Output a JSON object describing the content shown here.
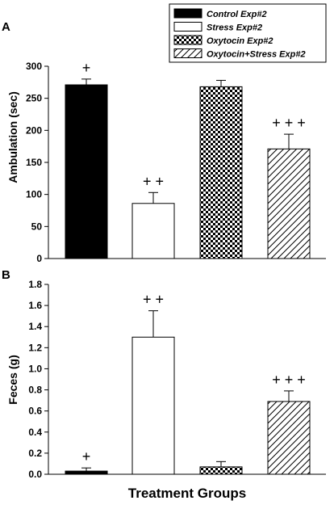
{
  "legend": {
    "placement": "top-right",
    "entries": [
      {
        "label": "Control Exp#2",
        "pattern": "solid-black"
      },
      {
        "label": "Stress Exp#2",
        "pattern": "open-white"
      },
      {
        "label": "Oxytocin Exp#2",
        "pattern": "checkerboard"
      },
      {
        "label": "Oxytocin+Stress Exp#2",
        "pattern": "diagonal-hatch"
      }
    ]
  },
  "xlabel": "Treatment Groups",
  "chart_data": [
    {
      "type": "bar",
      "panel_label": "A",
      "ylabel": "Ambulation (sec)",
      "ylim": [
        0,
        300
      ],
      "yticks": [
        "0",
        "50",
        "100",
        "150",
        "200",
        "250",
        "300"
      ],
      "categories": [
        "Control Exp#2",
        "Stress Exp#2",
        "Oxytocin Exp#2",
        "Oxytocin+Stress Exp#2"
      ],
      "values": [
        271,
        86,
        268,
        171
      ],
      "errors": [
        9,
        17,
        10,
        23
      ],
      "annotations": [
        "+",
        "+ +",
        "",
        "+ + +"
      ],
      "grid": false
    },
    {
      "type": "bar",
      "panel_label": "B",
      "ylabel": "Feces (g)",
      "ylim": [
        0,
        1.8
      ],
      "yticks": [
        "0.0",
        "0.2",
        "0.4",
        "0.6",
        "0.8",
        "1.0",
        "1.2",
        "1.4",
        "1.6",
        "1.8"
      ],
      "categories": [
        "Control Exp#2",
        "Stress Exp#2",
        "Oxytocin Exp#2",
        "Oxytocin+Stress Exp#2"
      ],
      "values": [
        0.03,
        1.3,
        0.07,
        0.69
      ],
      "errors": [
        0.03,
        0.25,
        0.05,
        0.1
      ],
      "annotations": [
        "+",
        "+ +",
        "",
        "+ + +"
      ],
      "grid": false
    }
  ]
}
